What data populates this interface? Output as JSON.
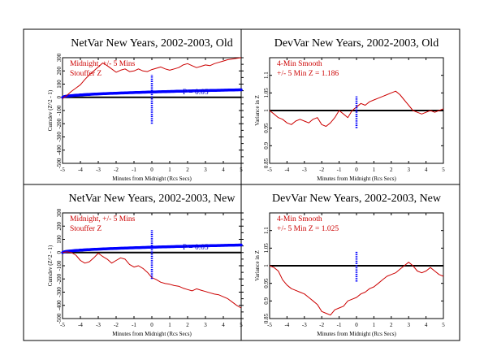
{
  "panels": [
    {
      "kind": "netvar",
      "title": "NetVar New Years, 2002-2003, Old",
      "note_lines": [
        "Midnight, +/- 5 Mins",
        "Stouffer Z"
      ],
      "p_label": "P = 0.05",
      "xlabel": "Minutes from Midnight (Rcs Secs)",
      "ylabel": "Cumdev (Z^2 - 1)"
    },
    {
      "kind": "devvar",
      "title": "DevVar New Years, 2002-2003, Old",
      "note_lines": [
        "4-Min Smooth",
        "+/- 5 Min Z = 1.186"
      ],
      "xlabel": "Minutes from Midnight (Rcs Secs)",
      "ylabel": "Variance in Z"
    },
    {
      "kind": "netvar",
      "title": "NetVar New Years, 2002-2003, New",
      "note_lines": [
        "Midnight, +/- 5 Mins",
        "Stouffer Z"
      ],
      "p_label": "P = 0.05",
      "xlabel": "Minutes from Midnight (Rcs Secs)",
      "ylabel": "Cumdev (Z^2 - 1)"
    },
    {
      "kind": "devvar",
      "title": "DevVar New Years, 2002-2003, New",
      "note_lines": [
        "4-Min Smooth",
        "+/- 5 Min Z = 1.025"
      ],
      "xlabel": "Minutes from Midnight (Rcs Secs)",
      "ylabel": "Variance in Z"
    }
  ],
  "colors": {
    "data": "#cc0000",
    "envelope": "#0000ff",
    "marker": "#0000ff",
    "axis": "#000000"
  },
  "chart_data": [
    {
      "type": "line",
      "title": "NetVar New Years, 2002-2003, Old",
      "xlabel": "Minutes from Midnight (Rcs Secs)",
      "ylabel": "Cumdev (Z^2 - 1)",
      "xlim": [
        -5,
        5
      ],
      "ylim": [
        -500,
        300
      ],
      "x_ticks": [
        -5,
        -4,
        -3,
        -2,
        -1,
        0,
        1,
        2,
        3,
        4,
        5
      ],
      "y_ticks": [
        -500,
        -400,
        -300,
        -200,
        -100,
        0,
        100,
        200,
        300
      ],
      "y_tick_labels": [
        "-500",
        "-400",
        "-300",
        "-200",
        "-100",
        "0",
        "100",
        "200",
        "300"
      ],
      "zero_line": 0,
      "envelope_p": 0.05,
      "marker_x": 0,
      "marker_range": [
        -200,
        170
      ],
      "x": [
        -5,
        -4.75,
        -4.5,
        -4.25,
        -4,
        -3.75,
        -3.5,
        -3.25,
        -3,
        -2.75,
        -2.5,
        -2.25,
        -2,
        -1.75,
        -1.5,
        -1.25,
        -1,
        -0.75,
        -0.5,
        -0.25,
        0,
        0.25,
        0.5,
        0.75,
        1,
        1.25,
        1.5,
        1.75,
        2,
        2.25,
        2.5,
        2.75,
        3,
        3.25,
        3.5,
        3.75,
        4,
        4.25,
        4.5,
        4.75,
        5
      ],
      "y": [
        -10,
        15,
        45,
        70,
        95,
        135,
        170,
        200,
        230,
        260,
        240,
        215,
        190,
        205,
        215,
        195,
        200,
        215,
        200,
        195,
        210,
        220,
        230,
        215,
        205,
        215,
        225,
        245,
        255,
        240,
        225,
        235,
        245,
        240,
        255,
        265,
        275,
        285,
        290,
        295,
        300
      ]
    },
    {
      "type": "line",
      "title": "DevVar New Years, 2002-2003, Old",
      "xlabel": "Minutes from Midnight (Rcs Secs)",
      "ylabel": "Variance in Z",
      "xlim": [
        -5,
        5
      ],
      "ylim": [
        0.85,
        1.15
      ],
      "x_ticks": [
        -5,
        -4,
        -3,
        -2,
        -1,
        0,
        1,
        2,
        3,
        4,
        5
      ],
      "y_ticks": [
        0.85,
        0.9,
        0.95,
        1.0,
        1.05,
        1.1
      ],
      "y_tick_labels": [
        "0.85",
        "0.9",
        "0.95",
        "1",
        "1.05",
        "1.1"
      ],
      "zero_line": 1.0,
      "marker_x": 0,
      "marker_range": [
        0.95,
        1.04
      ],
      "x": [
        -5,
        -4.75,
        -4.5,
        -4.25,
        -4,
        -3.75,
        -3.5,
        -3.25,
        -3,
        -2.75,
        -2.5,
        -2.25,
        -2,
        -1.75,
        -1.5,
        -1.25,
        -1,
        -0.75,
        -0.5,
        -0.25,
        0,
        0.25,
        0.5,
        0.75,
        1,
        1.25,
        1.5,
        1.75,
        2,
        2.25,
        2.5,
        2.75,
        3,
        3.25,
        3.5,
        3.75,
        4,
        4.25,
        4.5,
        4.75,
        5
      ],
      "y": [
        1.0,
        0.99,
        0.98,
        0.975,
        0.965,
        0.96,
        0.97,
        0.975,
        0.97,
        0.965,
        0.975,
        0.98,
        0.96,
        0.955,
        0.965,
        0.98,
        1.0,
        0.99,
        0.98,
        1.0,
        1.01,
        1.02,
        1.015,
        1.025,
        1.03,
        1.035,
        1.04,
        1.045,
        1.05,
        1.055,
        1.045,
        1.03,
        1.015,
        1.0,
        0.995,
        0.99,
        0.995,
        1.0,
        0.995,
        1.0,
        1.005
      ]
    },
    {
      "type": "line",
      "title": "NetVar New Years, 2002-2003, New",
      "xlabel": "Minutes from Midnight (Rcs Secs)",
      "ylabel": "Cumdev (Z^2 - 1)",
      "xlim": [
        -5,
        5
      ],
      "ylim": [
        -500,
        300
      ],
      "x_ticks": [
        -5,
        -4,
        -3,
        -2,
        -1,
        0,
        1,
        2,
        3,
        4,
        5
      ],
      "y_ticks": [
        -500,
        -400,
        -300,
        -200,
        -100,
        0,
        100,
        200,
        300
      ],
      "y_tick_labels": [
        "-500",
        "-400",
        "-300",
        "-200",
        "-100",
        "0",
        "100",
        "200",
        "300"
      ],
      "zero_line": 0,
      "envelope_p": 0.05,
      "marker_x": 0,
      "marker_range": [
        -200,
        170
      ],
      "x": [
        -5,
        -4.75,
        -4.5,
        -4.25,
        -4,
        -3.75,
        -3.5,
        -3.25,
        -3,
        -2.75,
        -2.5,
        -2.25,
        -2,
        -1.75,
        -1.5,
        -1.25,
        -1,
        -0.75,
        -0.5,
        -0.25,
        0,
        0.25,
        0.5,
        0.75,
        1,
        1.25,
        1.5,
        1.75,
        2,
        2.25,
        2.5,
        2.75,
        3,
        3.25,
        3.5,
        3.75,
        4,
        4.25,
        4.5,
        4.75,
        5
      ],
      "y": [
        0,
        5,
        0,
        -20,
        -60,
        -80,
        -70,
        -40,
        -5,
        -30,
        -50,
        -80,
        -60,
        -40,
        -50,
        -90,
        -110,
        -100,
        -120,
        -150,
        -190,
        -205,
        -225,
        -235,
        -240,
        -250,
        -255,
        -270,
        -280,
        -290,
        -275,
        -285,
        -295,
        -305,
        -315,
        -320,
        -335,
        -350,
        -375,
        -400,
        -420
      ]
    },
    {
      "type": "line",
      "title": "DevVar New Years, 2002-2003, New",
      "xlabel": "Minutes from Midnight (Rcs Secs)",
      "ylabel": "Variance in Z",
      "xlim": [
        -5,
        5
      ],
      "ylim": [
        0.85,
        1.15
      ],
      "x_ticks": [
        -5,
        -4,
        -3,
        -2,
        -1,
        0,
        1,
        2,
        3,
        4,
        5
      ],
      "y_ticks": [
        0.85,
        0.9,
        0.95,
        1.0,
        1.05,
        1.1
      ],
      "y_tick_labels": [
        "0.85",
        "0.9",
        "0.95",
        "1",
        "1.05",
        "1.1"
      ],
      "zero_line": 1.0,
      "marker_x": 0,
      "marker_range": [
        0.955,
        1.04
      ],
      "x": [
        -5,
        -4.75,
        -4.5,
        -4.25,
        -4,
        -3.75,
        -3.5,
        -3.25,
        -3,
        -2.75,
        -2.5,
        -2.25,
        -2,
        -1.75,
        -1.5,
        -1.25,
        -1,
        -0.75,
        -0.5,
        -0.25,
        0,
        0.25,
        0.5,
        0.75,
        1,
        1.25,
        1.5,
        1.75,
        2,
        2.25,
        2.5,
        2.75,
        3,
        3.25,
        3.5,
        3.75,
        4,
        4.25,
        4.5,
        4.75,
        5
      ],
      "y": [
        1.0,
        0.995,
        0.985,
        0.96,
        0.945,
        0.935,
        0.93,
        0.925,
        0.92,
        0.91,
        0.9,
        0.89,
        0.87,
        0.865,
        0.86,
        0.875,
        0.88,
        0.885,
        0.9,
        0.905,
        0.91,
        0.92,
        0.925,
        0.935,
        0.94,
        0.95,
        0.96,
        0.97,
        0.975,
        0.98,
        0.99,
        1.0,
        1.01,
        1.0,
        0.985,
        0.98,
        0.985,
        0.995,
        0.985,
        0.975,
        0.97
      ]
    }
  ]
}
